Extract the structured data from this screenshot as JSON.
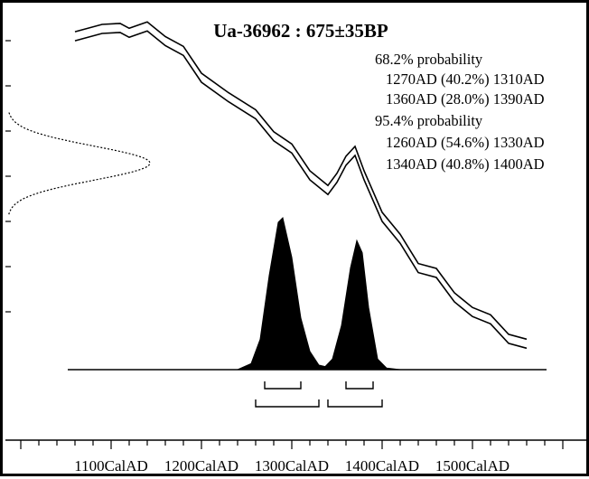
{
  "chart_data": {
    "type": "area",
    "title": "Ua-36962 : 675±35BP",
    "xlabel": "",
    "ylabel": "",
    "xlim": [
      1000,
      1600
    ],
    "x_tick_labels": [
      {
        "label": "1100CalAD",
        "value": 1100
      },
      {
        "label": "1200CalAD",
        "value": 1200
      },
      {
        "label": "1300CalAD",
        "value": 1300
      },
      {
        "label": "1400CalAD",
        "value": 1400
      },
      {
        "label": "1500CalAD",
        "value": 1500
      }
    ],
    "annotations": [
      "68.2% probability",
      "1270AD (40.2%) 1310AD",
      "1360AD (28.0%) 1390AD",
      "95.4% probability",
      "1260AD (54.6%) 1330AD",
      "1340AD (40.8%) 1400AD"
    ],
    "probability_distribution": {
      "x": [
        1240,
        1255,
        1265,
        1275,
        1285,
        1290,
        1300,
        1310,
        1320,
        1330,
        1337,
        1345,
        1355,
        1365,
        1372,
        1378,
        1385,
        1395,
        1405,
        1420
      ],
      "y": [
        0.0,
        0.04,
        0.2,
        0.62,
        0.97,
        1.0,
        0.74,
        0.34,
        0.12,
        0.03,
        0.02,
        0.07,
        0.29,
        0.67,
        0.85,
        0.77,
        0.41,
        0.07,
        0.01,
        0.0
      ]
    },
    "ranges_68": [
      [
        1270,
        1310
      ],
      [
        1360,
        1390
      ]
    ],
    "ranges_95": [
      [
        1260,
        1330
      ],
      [
        1340,
        1400
      ]
    ],
    "calibration_curve_bp": {
      "x": [
        1060,
        1090,
        1110,
        1120,
        1140,
        1160,
        1180,
        1200,
        1230,
        1260,
        1280,
        1300,
        1320,
        1340,
        1350,
        1360,
        1370,
        1380,
        1400,
        1420,
        1440,
        1460,
        1480,
        1500,
        1520,
        1540,
        1560
      ],
      "y": [
        935,
        950,
        952,
        942,
        955,
        925,
        905,
        850,
        810,
        775,
        730,
        705,
        650,
        620,
        645,
        680,
        700,
        650,
        565,
        520,
        460,
        450,
        400,
        370,
        355,
        315,
        305
      ]
    },
    "radiocarbon_distribution": {
      "mean_bp": 675,
      "sigma_bp": 35
    },
    "colors": {
      "curve": "#000000",
      "fill": "#000000",
      "background": "#ffffff"
    }
  }
}
